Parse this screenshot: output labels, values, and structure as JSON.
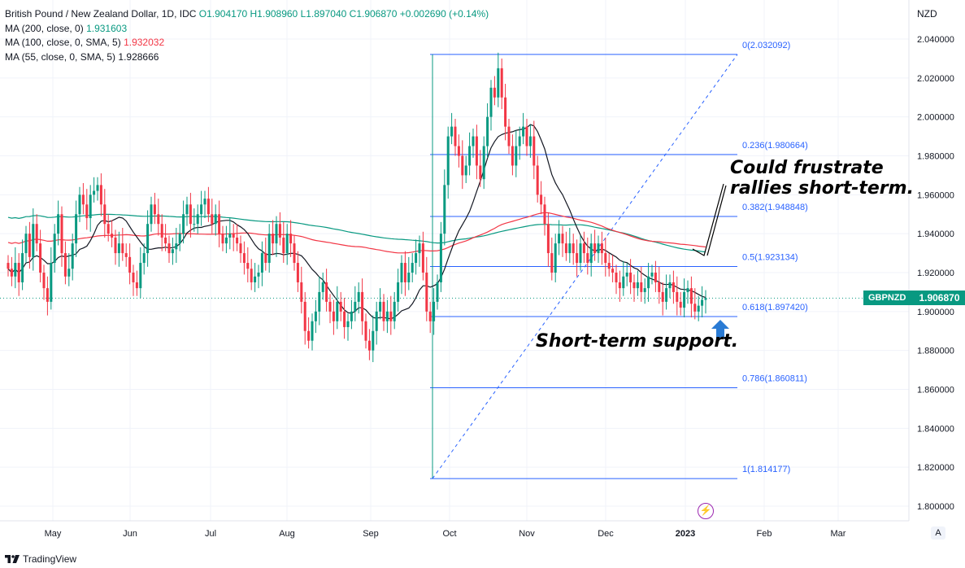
{
  "legend": {
    "title": "British Pound / New Zealand Dollar, 1D, IDC",
    "ohlc": {
      "o": "O1.904170",
      "h": "H1.908960",
      "l": "L1.897040",
      "c": "C1.906870",
      "chg": "+0.002690 (+0.14%)"
    },
    "ma200": {
      "label": "MA (200, close, 0)",
      "value": "1.931603",
      "color": "#089981"
    },
    "ma100": {
      "label": "MA (100, close, 0, SMA, 5)",
      "value": "1.932032",
      "color": "#f23645"
    },
    "ma55": {
      "label": "MA (55, close, 0, SMA, 5)",
      "value": "1.928666",
      "color": "#131722"
    }
  },
  "axis_unit": "NZD",
  "price_tag": {
    "symbol": "GBPNZD",
    "value": "1.906870"
  },
  "annotations": {
    "resistance": [
      "Could frustrate",
      "rallies short-term."
    ],
    "support": "Short-term support."
  },
  "footer": {
    "brand": "TradingView"
  },
  "auto_button": "A",
  "chart_data": {
    "type": "candlestick",
    "title": "British Pound / New Zealand Dollar, 1D, IDC",
    "ylim": [
      1.79,
      2.05
    ],
    "y_ticks": [
      "2.040000",
      "2.020000",
      "2.000000",
      "1.980000",
      "1.960000",
      "1.940000",
      "1.920000",
      "1.900000",
      "1.880000",
      "1.860000",
      "1.840000",
      "1.820000",
      "1.800000"
    ],
    "x_ticks": [
      "May",
      "Jun",
      "Jul",
      "Aug",
      "Sep",
      "Oct",
      "Nov",
      "Dec",
      "2023",
      "Feb",
      "Mar"
    ],
    "x_tick_bold": "2023",
    "last_price": 1.90687,
    "fib": [
      {
        "ratio": "0",
        "level": 2.032092,
        "label": "0(2.032092)"
      },
      {
        "ratio": "0.236",
        "level": 1.980664,
        "label": "0.236(1.980664)"
      },
      {
        "ratio": "0.382",
        "level": 1.948848,
        "label": "0.382(1.948848)"
      },
      {
        "ratio": "0.5",
        "level": 1.923134,
        "label": "0.5(1.923134)"
      },
      {
        "ratio": "0.618",
        "level": 1.89742,
        "label": "0.618(1.897420)"
      },
      {
        "ratio": "0.786",
        "level": 1.860811,
        "label": "0.786(1.860811)"
      },
      {
        "ratio": "1",
        "level": 1.814177,
        "label": "1(1.814177)"
      }
    ],
    "colors": {
      "up": "#089981",
      "down": "#f23645",
      "ma55": "#131722",
      "ma100": "#f23645",
      "ma200": "#089981",
      "fib": "#2962ff"
    },
    "closes": [
      1.922,
      1.918,
      1.925,
      1.915,
      1.93,
      1.94,
      1.928,
      1.945,
      1.935,
      1.92,
      1.912,
      1.905,
      1.925,
      1.94,
      1.95,
      1.93,
      1.918,
      1.922,
      1.935,
      1.95,
      1.96,
      1.955,
      1.948,
      1.96,
      1.962,
      1.965,
      1.955,
      1.945,
      1.94,
      1.938,
      1.93,
      1.935,
      1.93,
      1.928,
      1.92,
      1.915,
      1.912,
      1.925,
      1.93,
      1.945,
      1.955,
      1.95,
      1.945,
      1.938,
      1.935,
      1.93,
      1.932,
      1.935,
      1.94,
      1.95,
      1.955,
      1.945,
      1.945,
      1.95,
      1.955,
      1.958,
      1.95,
      1.945,
      1.95,
      1.94,
      1.935,
      1.938,
      1.94,
      1.938,
      1.935,
      1.93,
      1.925,
      1.922,
      1.915,
      1.918,
      1.92,
      1.93,
      1.925,
      1.94,
      1.935,
      1.945,
      1.938,
      1.93,
      1.94,
      1.935,
      1.925,
      1.915,
      1.905,
      1.89,
      1.885,
      1.895,
      1.9,
      1.91,
      1.915,
      1.905,
      1.9,
      1.895,
      1.905,
      1.9,
      1.892,
      1.895,
      1.9,
      1.905,
      1.91,
      1.895,
      1.885,
      1.88,
      1.89,
      1.9,
      1.905,
      1.895,
      1.9,
      1.895,
      1.905,
      1.915,
      1.925,
      1.915,
      1.92,
      1.925,
      1.93,
      1.935,
      1.92,
      1.9,
      1.895,
      1.905,
      1.915,
      1.94,
      1.965,
      1.99,
      1.995,
      1.985,
      1.98,
      1.97,
      1.975,
      1.985,
      1.99,
      1.975,
      1.968,
      1.985,
      2.0,
      2.015,
      2.01,
      2.025,
      2.01,
      1.995,
      1.985,
      1.975,
      1.985,
      1.99,
      1.995,
      1.985,
      1.99,
      1.975,
      1.96,
      1.955,
      1.945,
      1.93,
      1.92,
      1.935,
      1.94,
      1.935,
      1.93,
      1.935,
      1.93,
      1.925,
      1.935,
      1.93,
      1.925,
      1.935,
      1.93,
      1.935,
      1.93,
      1.925,
      1.922,
      1.92,
      1.915,
      1.912,
      1.918,
      1.92,
      1.915,
      1.912,
      1.915,
      1.91,
      1.912,
      1.918,
      1.92,
      1.915,
      1.91,
      1.905,
      1.912,
      1.915,
      1.91,
      1.905,
      1.902,
      1.91,
      1.912,
      1.904,
      1.9,
      1.903,
      1.906,
      1.907
    ]
  }
}
